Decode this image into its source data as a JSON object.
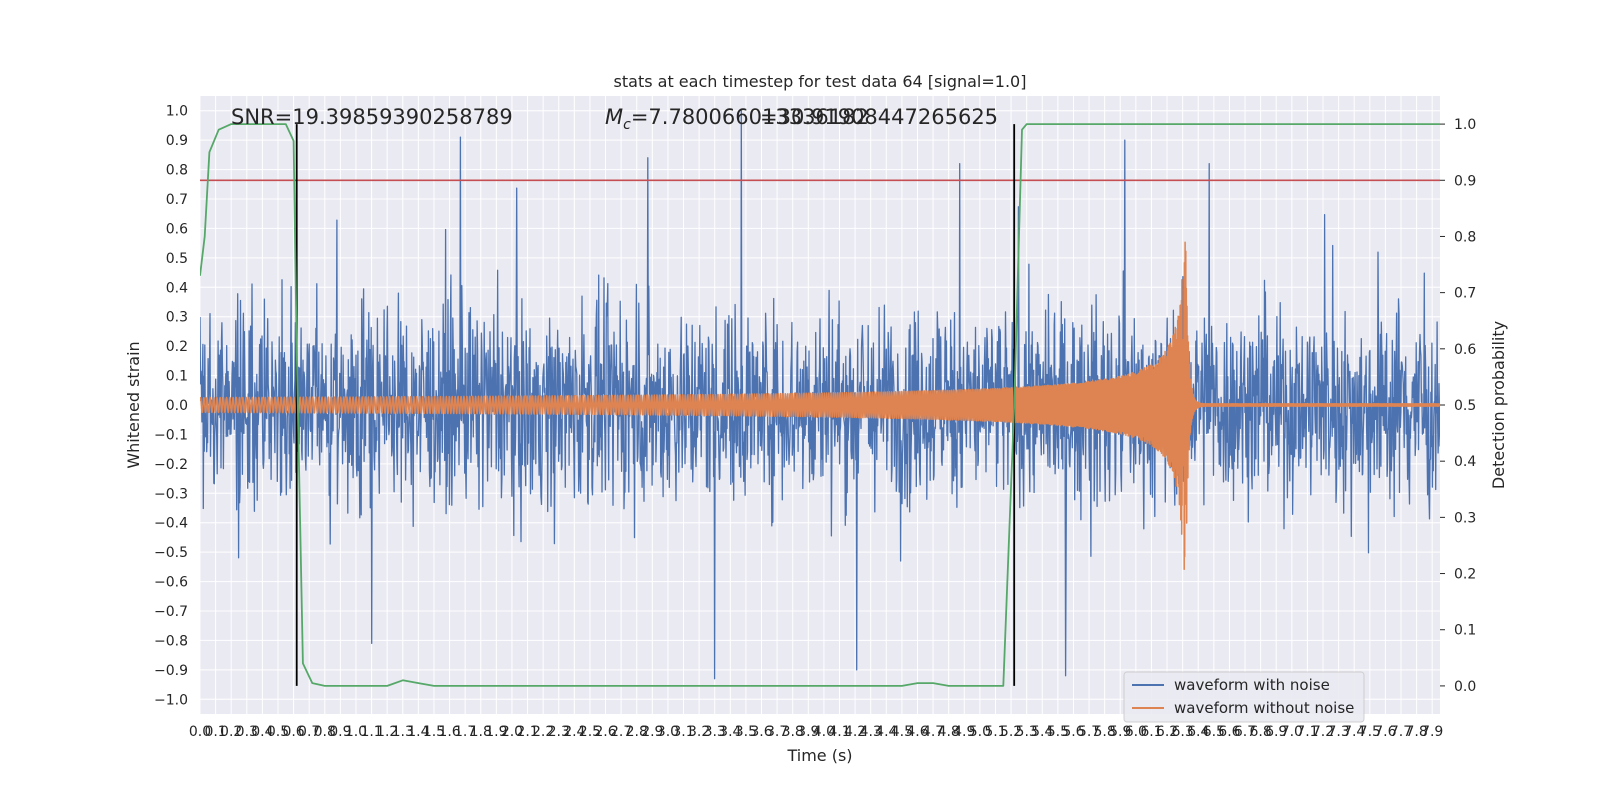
{
  "chart_data": {
    "type": "line",
    "title": "stats at each timestep for test data 64 [signal=1.0]",
    "xlabel": "Time (s)",
    "ylabel": "Whitened strain",
    "ylabel_right": "Detection probability",
    "xlim": [
      0.0,
      7.95
    ],
    "ylim": [
      -1.05,
      1.05
    ],
    "ylim_right": [
      -0.05,
      1.05
    ],
    "x_ticks": [
      0.0,
      0.1,
      0.2,
      0.3,
      0.4,
      0.5,
      0.6,
      0.7,
      0.8,
      0.9,
      1.0,
      1.1,
      1.2,
      1.3,
      1.4,
      1.5,
      1.6,
      1.7,
      1.8,
      1.9,
      2.0,
      2.1,
      2.2,
      2.3,
      2.4,
      2.5,
      2.6,
      2.7,
      2.8,
      2.9,
      3.0,
      3.1,
      3.2,
      3.3,
      3.4,
      3.5,
      3.6,
      3.7,
      3.8,
      3.9,
      4.0,
      4.1,
      4.2,
      4.3,
      4.4,
      4.5,
      4.6,
      4.7,
      4.8,
      4.9,
      5.0,
      5.1,
      5.2,
      5.3,
      5.4,
      5.5,
      5.6,
      5.7,
      5.8,
      5.9,
      6.0,
      6.1,
      6.2,
      6.3,
      6.4,
      6.5,
      6.6,
      6.7,
      6.8,
      6.9,
      7.0,
      7.1,
      7.2,
      7.3,
      7.4,
      7.5,
      7.6,
      7.7,
      7.8,
      7.9
    ],
    "y_ticks": [
      -1.0,
      -0.9,
      -0.8,
      -0.7,
      -0.6,
      -0.5,
      -0.4,
      -0.3,
      -0.2,
      -0.1,
      0.0,
      0.1,
      0.2,
      0.3,
      0.4,
      0.5,
      0.6,
      0.7,
      0.8,
      0.9,
      1.0
    ],
    "y_ticks_right": [
      0.0,
      0.1,
      0.2,
      0.3,
      0.4,
      0.5,
      0.6,
      0.7,
      0.8,
      0.9,
      1.0
    ],
    "grid": true,
    "legend_position": "lower-right",
    "annotations": {
      "snr": "SNR=19.39859390258789",
      "mc_prefix": "M",
      "mc_sub": "c",
      "mc_value": "=7.780066013336182",
      "overlap": "=30.91908447265625"
    },
    "threshold": 0.9,
    "vlines": [
      0.62,
      5.22
    ],
    "series": [
      {
        "name": "waveform with noise",
        "color": "#4c72b0",
        "noise_envelope": 0.38,
        "peaks": [
          {
            "x": 1.67,
            "y": 0.91
          },
          {
            "x": 2.87,
            "y": 0.84
          },
          {
            "x": 3.47,
            "y": 1.0
          },
          {
            "x": 4.87,
            "y": 0.82
          },
          {
            "x": 5.93,
            "y": 0.9
          },
          {
            "x": 6.47,
            "y": 0.82
          },
          {
            "x": 3.3,
            "y": -0.93
          },
          {
            "x": 4.21,
            "y": -0.9
          },
          {
            "x": 5.55,
            "y": -0.92
          },
          {
            "x": 1.1,
            "y": -0.81
          }
        ]
      },
      {
        "name": "waveform without noise",
        "color": "#dd8452",
        "start_amplitude": 0.025,
        "peak_time": 6.32,
        "peak_amplitude": 0.57
      },
      {
        "name": "detection probability",
        "color": "#55a868",
        "x": [
          0.0,
          0.03,
          0.06,
          0.12,
          0.2,
          0.3,
          0.4,
          0.55,
          0.6,
          0.62,
          0.66,
          0.72,
          0.8,
          1.0,
          1.2,
          1.3,
          1.4,
          1.5,
          2.0,
          3.0,
          4.0,
          4.5,
          4.6,
          4.7,
          4.8,
          5.0,
          5.15,
          5.22,
          5.27,
          5.3,
          5.5,
          6.0,
          7.0,
          7.95
        ],
        "y": [
          0.73,
          0.8,
          0.95,
          0.99,
          1.0,
          1.0,
          1.0,
          1.0,
          0.97,
          0.6,
          0.04,
          0.005,
          0.0,
          0.0,
          0.0,
          0.01,
          0.005,
          0.0,
          0.0,
          0.0,
          0.0,
          0.0,
          0.005,
          0.005,
          0.0,
          0.0,
          0.0,
          0.5,
          0.99,
          1.0,
          1.0,
          1.0,
          1.0,
          1.0
        ]
      }
    ],
    "threshold_color": "#c44e52"
  }
}
